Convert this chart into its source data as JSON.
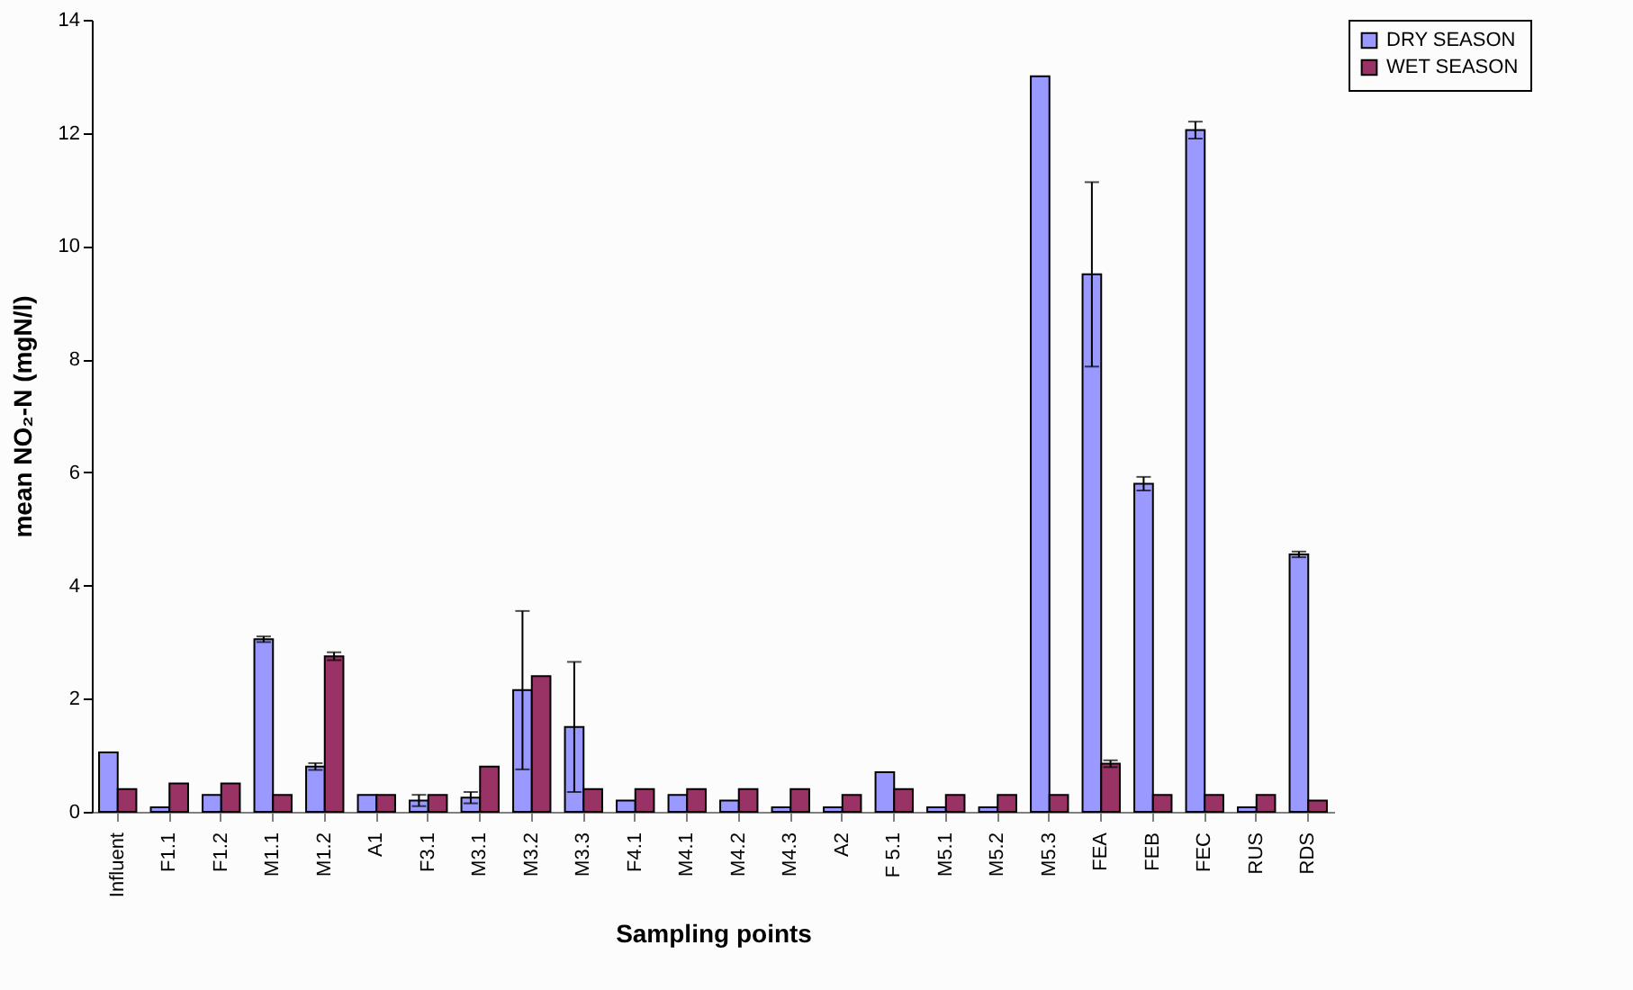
{
  "chart_data": {
    "type": "bar",
    "xlabel": "Sampling points",
    "ylabel": "mean NO₂-N (mgN/l)",
    "categories": [
      "Influent",
      "F1.1",
      "F1.2",
      "M1.1",
      "M1.2",
      "A1",
      "F3.1",
      "M3.1",
      "M3.2",
      "M3.3",
      "F4.1",
      "M4.1",
      "M4.2",
      "M4.3",
      "A2",
      "F 5.1",
      "M5.1",
      "M5.2",
      "M5.3",
      "FEA",
      "FEB",
      "FEC",
      "RUS",
      "RDS"
    ],
    "series": [
      {
        "name": "DRY SEASON",
        "color": "#9999ff",
        "values": [
          1.05,
          0.08,
          0.3,
          3.05,
          0.8,
          0.3,
          0.2,
          0.25,
          2.15,
          1.5,
          0.2,
          0.3,
          0.2,
          0.08,
          0.08,
          0.7,
          0.08,
          0.08,
          13,
          9.5,
          5.8,
          12.05,
          0.08,
          4.55
        ],
        "errors": [
          null,
          null,
          null,
          0.05,
          0.06,
          null,
          0.1,
          0.1,
          1.4,
          1.15,
          null,
          null,
          null,
          null,
          null,
          null,
          null,
          null,
          null,
          1.63,
          0.12,
          0.15,
          null,
          0.05
        ]
      },
      {
        "name": "WET SEASON",
        "color": "#993366",
        "values": [
          0.4,
          0.5,
          0.5,
          0.3,
          2.75,
          0.3,
          0.3,
          0.8,
          2.4,
          0.4,
          0.4,
          0.4,
          0.4,
          0.4,
          0.3,
          0.4,
          0.3,
          0.3,
          0.3,
          0.85,
          0.3,
          0.3,
          0.3,
          0.2
        ],
        "errors": [
          null,
          null,
          null,
          null,
          0.07,
          null,
          null,
          null,
          null,
          null,
          null,
          null,
          null,
          null,
          null,
          null,
          null,
          null,
          null,
          0.06,
          null,
          null,
          null,
          null
        ]
      }
    ],
    "ylim": [
      0,
      14
    ],
    "yticks": [
      0,
      2,
      4,
      6,
      8,
      10,
      12,
      14
    ],
    "legend": "right"
  }
}
